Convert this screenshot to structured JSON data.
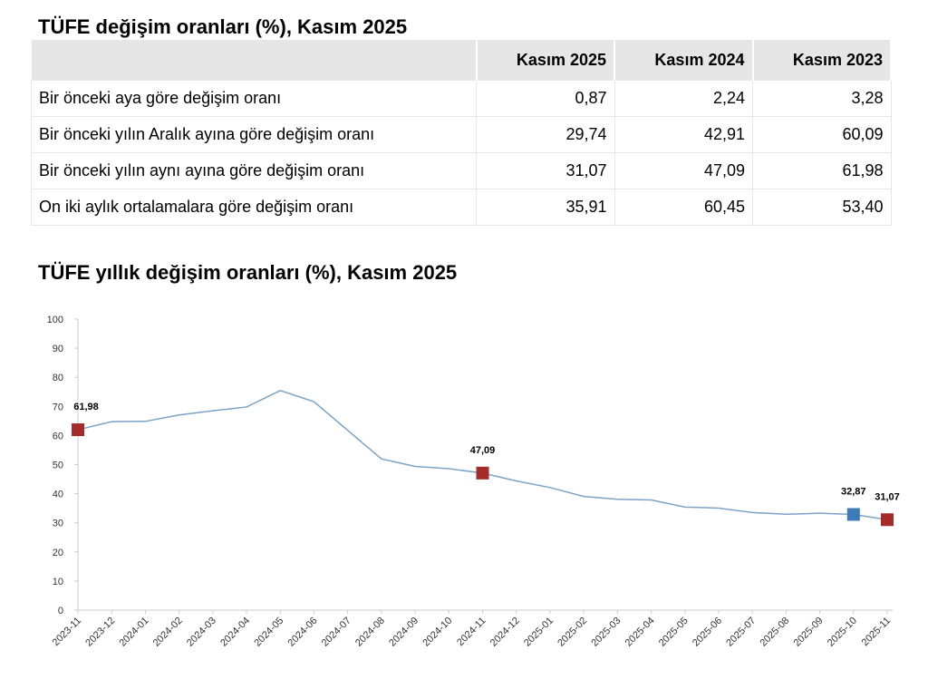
{
  "table": {
    "title": "TÜFE değişim oranları (%), Kasım 2025",
    "headers": [
      "Kasım 2025",
      "Kasım 2024",
      "Kasım 2023"
    ],
    "rows": [
      [
        "Bir önceki aya göre değişim oranı",
        "0,87",
        "2,24",
        "3,28"
      ],
      [
        "Bir önceki yılın Aralık ayına göre değişim oranı",
        "29,74",
        "42,91",
        "60,09"
      ],
      [
        "Bir önceki yılın aynı ayına göre değişim oranı",
        "31,07",
        "47,09",
        "61,98"
      ],
      [
        "On iki aylık ortalamalara göre değişim oranı",
        "35,91",
        "60,45",
        "53,40"
      ]
    ]
  },
  "chart_data": {
    "type": "line",
    "title": "TÜFE yıllık değişim oranları (%), Kasım 2025",
    "categories": [
      "2023-11",
      "2023-12",
      "2024-01",
      "2024-02",
      "2024-03",
      "2024-04",
      "2024-05",
      "2024-06",
      "2024-07",
      "2024-08",
      "2024-09",
      "2024-10",
      "2024-11",
      "2024-12",
      "2025-01",
      "2025-02",
      "2025-03",
      "2025-04",
      "2025-05",
      "2025-06",
      "2025-07",
      "2025-08",
      "2025-09",
      "2025-10",
      "2025-11"
    ],
    "values": [
      61.98,
      64.77,
      64.86,
      67.07,
      68.5,
      69.8,
      75.45,
      71.6,
      61.78,
      51.97,
      49.38,
      48.58,
      47.09,
      44.38,
      42.12,
      39.05,
      38.1,
      37.86,
      35.41,
      35.05,
      33.52,
      32.95,
      33.29,
      32.87,
      31.07
    ],
    "value_labels": [
      "61,98",
      null,
      null,
      null,
      null,
      null,
      null,
      null,
      null,
      null,
      null,
      null,
      "47,09",
      null,
      null,
      null,
      null,
      null,
      null,
      null,
      null,
      null,
      null,
      "32,87",
      "31,07"
    ],
    "marker_colors": [
      "#a52a2a",
      null,
      null,
      null,
      null,
      null,
      null,
      null,
      null,
      null,
      null,
      null,
      "#a52a2a",
      null,
      null,
      null,
      null,
      null,
      null,
      null,
      null,
      null,
      null,
      "#3d7ab8",
      "#a52a2a"
    ],
    "color": "#7ba3c8",
    "ylim": [
      0,
      100
    ],
    "yticks": [
      0,
      10,
      20,
      30,
      40,
      50,
      60,
      70,
      80,
      90,
      100
    ]
  }
}
